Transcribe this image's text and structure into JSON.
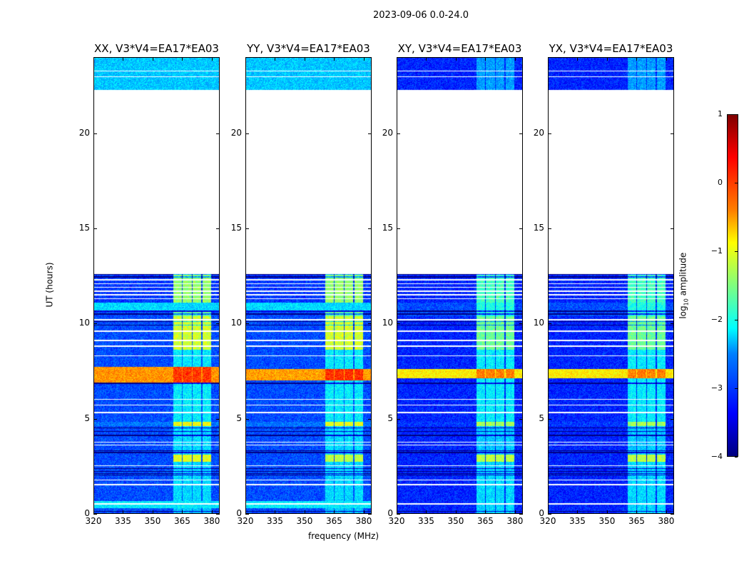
{
  "chart_data": {
    "type": "heatmap",
    "title": "2023-09-06 0.0-24.0",
    "xlabel": "frequency (MHz)",
    "ylabel": "UT (hours)",
    "xlim": [
      320,
      384
    ],
    "ylim": [
      0,
      24
    ],
    "xticks": [
      320,
      335,
      350,
      365,
      380
    ],
    "yticks": [
      0,
      5,
      10,
      15,
      20
    ],
    "bright_subbands_mhz": [
      [
        360.5,
        365
      ],
      [
        365.5,
        370
      ],
      [
        370.5,
        375
      ],
      [
        375.5,
        380
      ]
    ],
    "colorbar": {
      "label_main": "log",
      "label_sub": "10",
      "label_rest": " amplitude",
      "range": [
        -4,
        1
      ],
      "ticks": [
        "1",
        "0",
        "−1",
        "−2",
        "−3",
        "−4"
      ],
      "tick_values": [
        1,
        0,
        -1,
        -2,
        -3,
        -4
      ],
      "colormap": "jet"
    },
    "panels": [
      {
        "title": "XX, V3*V4=EA17*EA03",
        "segments": [
          [
            0,
            0.25,
            -3.0,
            -2.4
          ],
          [
            0.25,
            0.65,
            -2.2,
            -2.2
          ],
          [
            0.65,
            2.7,
            -3.0,
            -2.3
          ],
          [
            2.7,
            3.1,
            -3.0,
            -1.0
          ],
          [
            3.1,
            4.6,
            -3.0,
            -2.3
          ],
          [
            4.6,
            4.8,
            -2.8,
            -0.9
          ],
          [
            4.8,
            6.9,
            -3.0,
            -2.2
          ],
          [
            6.9,
            7.7,
            -0.35,
            0.1
          ],
          [
            7.7,
            8.6,
            -3.0,
            -2.2
          ],
          [
            8.6,
            10.4,
            -3.0,
            -1.1
          ],
          [
            10.4,
            10.6,
            -3.0,
            -1.6
          ],
          [
            10.6,
            11.1,
            -2.3,
            -2.3
          ],
          [
            11.1,
            12.6,
            -3.1,
            -1.4
          ],
          [
            22.3,
            24,
            -2.4,
            -2.4
          ]
        ]
      },
      {
        "title": "YY, V3*V4=EA17*EA03",
        "segments": [
          [
            0,
            0.25,
            -3.0,
            -2.4
          ],
          [
            0.25,
            0.65,
            -2.2,
            -2.2
          ],
          [
            0.65,
            2.7,
            -3.0,
            -2.3
          ],
          [
            2.7,
            3.1,
            -3.0,
            -1.2
          ],
          [
            3.1,
            4.6,
            -3.0,
            -2.3
          ],
          [
            4.6,
            4.8,
            -2.8,
            -1.0
          ],
          [
            4.8,
            7.0,
            -3.0,
            -2.2
          ],
          [
            7.0,
            7.6,
            -0.4,
            0.15
          ],
          [
            7.6,
            8.6,
            -3.0,
            -2.2
          ],
          [
            8.6,
            10.4,
            -3.0,
            -1.1
          ],
          [
            10.4,
            10.6,
            -3.0,
            -1.6
          ],
          [
            10.6,
            11.1,
            -2.3,
            -2.3
          ],
          [
            11.1,
            12.6,
            -3.1,
            -1.4
          ],
          [
            22.3,
            24,
            -2.4,
            -2.4
          ]
        ]
      },
      {
        "title": "XY, V3*V4=EA17*EA03",
        "segments": [
          [
            0,
            2.7,
            -3.2,
            -2.3
          ],
          [
            2.7,
            3.1,
            -3.2,
            -1.2
          ],
          [
            3.1,
            4.6,
            -3.2,
            -2.4
          ],
          [
            4.6,
            4.8,
            -3.1,
            -1.3
          ],
          [
            4.8,
            7.1,
            -3.2,
            -2.2
          ],
          [
            7.1,
            7.6,
            -0.8,
            -0.25
          ],
          [
            7.6,
            8.6,
            -3.2,
            -2.2
          ],
          [
            8.6,
            10.4,
            -3.2,
            -1.6
          ],
          [
            10.4,
            11.1,
            -3.0,
            -2.0
          ],
          [
            11.1,
            12.6,
            -3.2,
            -1.8
          ],
          [
            22.3,
            24,
            -3.2,
            -2.6
          ]
        ]
      },
      {
        "title": "YX, V3*V4=EA17*EA03",
        "segments": [
          [
            0,
            2.7,
            -3.2,
            -2.3
          ],
          [
            2.7,
            3.1,
            -3.2,
            -1.2
          ],
          [
            3.1,
            4.6,
            -3.2,
            -2.4
          ],
          [
            4.6,
            4.8,
            -3.1,
            -1.3
          ],
          [
            4.8,
            7.1,
            -3.2,
            -2.2
          ],
          [
            7.1,
            7.6,
            -0.8,
            -0.25
          ],
          [
            7.6,
            8.6,
            -3.2,
            -2.2
          ],
          [
            8.6,
            10.4,
            -3.2,
            -1.6
          ],
          [
            10.4,
            11.1,
            -3.0,
            -2.0
          ],
          [
            11.1,
            12.6,
            -3.2,
            -1.8
          ],
          [
            22.3,
            24,
            -3.2,
            -2.6
          ]
        ]
      }
    ],
    "flagged_rows_hours": [
      0.5,
      1.5,
      1.75,
      2.5,
      3.6,
      3.75,
      5.3,
      5.7,
      6.0,
      8.3,
      8.8,
      9.1,
      9.6,
      10.2,
      11.3,
      11.5,
      11.7,
      11.9,
      12.1,
      12.3,
      23.0,
      23.3
    ],
    "dark_rows_hours": [
      0.1,
      2.0,
      2.1,
      2.2,
      2.35,
      3.2,
      3.3,
      4.1,
      4.3,
      4.5,
      6.85,
      9.9,
      10.1,
      10.5,
      10.65,
      12.45,
      12.6
    ]
  }
}
